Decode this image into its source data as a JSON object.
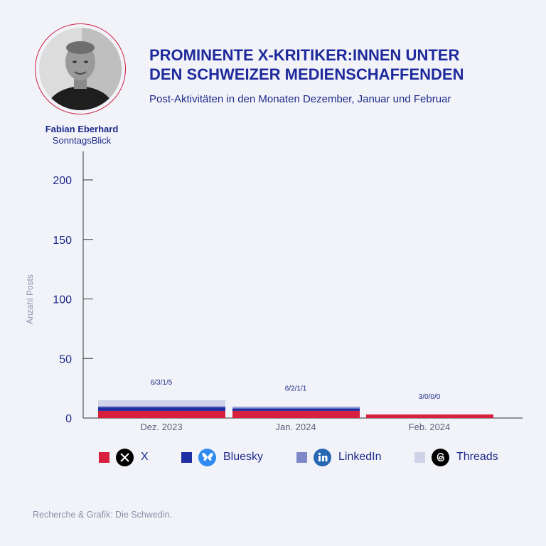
{
  "person": {
    "name": "Fabian Eberhard",
    "outlet": "SonntagsBlick"
  },
  "header": {
    "title_line1": "PROMINENTE X-KRITIKER:INNEN UNTER",
    "title_line2": "DEN SCHWEIZER MEDIENSCHAFFENDEN",
    "subtitle": "Post-Aktivitäten in den Monaten Dezember, Januar und Februar"
  },
  "legend": {
    "items": [
      {
        "label": "X",
        "color": "#d81f3e",
        "icon": "x-logo-icon"
      },
      {
        "label": "Bluesky",
        "color": "#1f2ea0",
        "icon": "bluesky-logo-icon"
      },
      {
        "label": "LinkedIn",
        "color": "#7f88c9",
        "icon": "linkedin-logo-icon"
      },
      {
        "label": "Threads",
        "color": "#cfd3ea",
        "icon": "threads-logo-icon"
      }
    ]
  },
  "chart_data": {
    "type": "bar",
    "stacked": true,
    "ylabel": "Anzahl Posts",
    "ylim": [
      0,
      220
    ],
    "yticks": [
      0,
      50,
      100,
      150,
      200
    ],
    "categories": [
      "Dez. 2023",
      "Jan. 2024",
      "Feb. 2024"
    ],
    "data_labels": [
      "6/3/1/5",
      "6/2/1/1",
      "3/0/0/0"
    ],
    "series": [
      {
        "name": "X",
        "color": "#d81f3e",
        "values": [
          6,
          6,
          3
        ]
      },
      {
        "name": "Bluesky",
        "color": "#1f2ea0",
        "values": [
          3,
          2,
          0
        ]
      },
      {
        "name": "LinkedIn",
        "color": "#7f88c9",
        "values": [
          1,
          1,
          0
        ]
      },
      {
        "name": "Threads",
        "color": "#cfd3ea",
        "values": [
          5,
          1,
          0
        ]
      }
    ],
    "grid": false
  },
  "footer": {
    "source": "Recherche & Grafik: Die Schwedin."
  }
}
